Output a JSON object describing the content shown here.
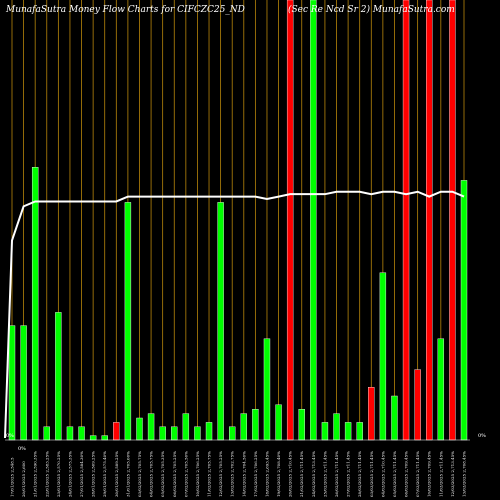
{
  "chart_data": {
    "type": "bar",
    "title": "MunafaSutra  Money Flow  Charts for CIFCZC25_ND",
    "title_right": "(Sec Re    Ncd Sr 2) MunafaSutra.com",
    "percent_labels": [
      "0%",
      "0%",
      "0%"
    ],
    "grid": true,
    "grid_color": "#b8860b",
    "background": "#000000",
    "bar_colors": {
      "up": "#00ff00",
      "down": "#ff0000",
      "border": "#ffffff"
    },
    "price_line_color": "#ffffff",
    "ylim": [
      0,
      100
    ],
    "categories": [
      "17/01/2025 2,548.5",
      "20/01/2025 2,600",
      "21/01/2025 2,590.35%",
      "22/01/2025 2,583.25%",
      "23/01/2025 2,570.25%",
      "24/01/2025 2,575.35%",
      "27/01/2025 2,584.30%",
      "28/01/2025 2,569.25%",
      "29/01/2025 2,575.40%",
      "30/01/2025 2,589.25%",
      "31/01/2025 2,705.00%",
      "03/02/2025 2,705.75%",
      "04/02/2025 2,705.75%",
      "05/02/2025 2,705.35%",
      "06/02/2025 2,705.25%",
      "07/02/2025 2,705.50%",
      "10/02/2025 2,706.25%",
      "11/02/2025 2,705.75%",
      "12/02/2025 2,705.25%",
      "13/02/2025 2,702.75%",
      "14/02/2025 2,704.50%",
      "17/02/2025 2,706.25%",
      "18/02/2025 2,693.45%",
      "19/02/2025 2,708.40%",
      "20/02/2025 2,710.45%",
      "21/02/2025 2,711.45%",
      "24/02/2025 2,713.45%",
      "25/02/2025 2,711.45%",
      "26/02/2025 2,711.45%",
      "27/02/2025 2,711.45%",
      "28/02/2025 2,711.45%",
      "03/03/2025 2,711.45%",
      "04/03/2025 2,710.45%",
      "05/03/2025 2,711.45%",
      "06/03/2025 2,709.45%",
      "07/03/2025 2,711.45%",
      "10/03/2025 2,709.45%",
      "11/03/2025 2,711.45%",
      "12/03/2025 2,713.45%",
      "13/03/2025 2,708.45%"
    ],
    "series": [
      {
        "values": [
          26,
          26,
          62,
          3,
          29,
          3,
          3,
          1,
          1,
          4,
          54,
          5,
          6,
          3,
          3,
          6,
          3,
          4,
          54,
          3,
          6,
          7,
          23,
          8,
          100,
          7,
          100,
          4,
          6,
          4,
          4,
          12,
          38,
          10,
          100,
          16,
          100,
          23,
          100,
          59
        ],
        "directions": [
          "up",
          "up",
          "up",
          "up",
          "up",
          "up",
          "up",
          "up",
          "up",
          "down",
          "up",
          "up",
          "up",
          "up",
          "up",
          "up",
          "up",
          "up",
          "up",
          "up",
          "up",
          "up",
          "up",
          "up",
          "down",
          "up",
          "up",
          "up",
          "up",
          "up",
          "up",
          "down",
          "up",
          "up",
          "down",
          "down",
          "down",
          "up",
          "down",
          "up"
        ]
      },
      {
        "values": [
          82,
          96,
          98,
          98,
          98,
          98,
          98,
          98,
          98,
          98,
          100,
          100,
          100,
          100,
          100,
          100,
          100,
          100,
          100,
          100,
          100,
          100,
          99,
          100,
          101,
          101,
          101,
          101,
          102,
          102,
          102,
          101,
          102,
          102,
          101,
          102,
          100,
          102,
          102,
          100
        ]
      }
    ]
  }
}
